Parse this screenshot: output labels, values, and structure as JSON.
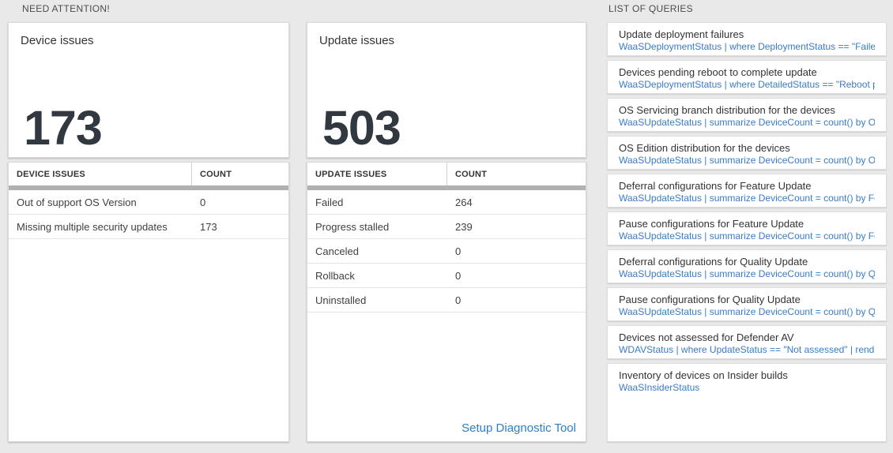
{
  "sections": {
    "need_attention": "NEED ATTENTION!",
    "list_of_queries": "LIST OF QUERIES"
  },
  "device_card": {
    "title": "Device issues",
    "count": "173"
  },
  "update_card": {
    "title": "Update issues",
    "count": "503"
  },
  "device_table": {
    "columns": [
      "DEVICE ISSUES",
      "COUNT"
    ],
    "rows": [
      [
        "Out of support OS Version",
        "0"
      ],
      [
        "Missing multiple security updates",
        "173"
      ]
    ]
  },
  "update_table": {
    "columns": [
      "UPDATE ISSUES",
      "COUNT"
    ],
    "rows": [
      [
        "Failed",
        "264"
      ],
      [
        "Progress stalled",
        "239"
      ],
      [
        "Canceled",
        "0"
      ],
      [
        "Rollback",
        "0"
      ],
      [
        "Uninstalled",
        "0"
      ]
    ],
    "footer_link": "Setup Diagnostic Tool"
  },
  "queries": {
    "items": [
      {
        "title": "Update deployment failures",
        "query": "WaaSDeploymentStatus | where DeploymentStatus == \"Failed\" |..."
      },
      {
        "title": "Devices pending reboot to complete update",
        "query": "WaaSDeploymentStatus | where DetailedStatus == \"Reboot pend..."
      },
      {
        "title": "OS Servicing branch distribution for the devices",
        "query": "WaaSUpdateStatus | summarize DeviceCount = count() by OSSer..."
      },
      {
        "title": "OS Edition distribution for the devices",
        "query": "WaaSUpdateStatus | summarize DeviceCount = count() by OSEdit..."
      },
      {
        "title": "Deferral configurations for Feature Update",
        "query": "WaaSUpdateStatus | summarize DeviceCount = count() by Featur..."
      },
      {
        "title": "Pause configurations for Feature Update",
        "query": "WaaSUpdateStatus | summarize DeviceCount = count() by Featur..."
      },
      {
        "title": "Deferral configurations for Quality Update",
        "query": "WaaSUpdateStatus | summarize DeviceCount = count() by Qualit..."
      },
      {
        "title": "Pause configurations for Quality Update",
        "query": "WaaSUpdateStatus | summarize DeviceCount = count() by Qualit..."
      },
      {
        "title": "Devices not assessed for Defender AV",
        "query": "WDAVStatus | where UpdateStatus == \"Not assessed\" | render ta..."
      },
      {
        "title": "Inventory of devices on Insider builds",
        "query": "WaaSInsiderStatus"
      }
    ]
  },
  "colors": {
    "page_bg": "#e9e9e9",
    "query_blue": "#3a7cc3",
    "link_blue": "#2d7ec7",
    "number_dark": "#32383f",
    "divider_bar": "#b0b1b3"
  }
}
